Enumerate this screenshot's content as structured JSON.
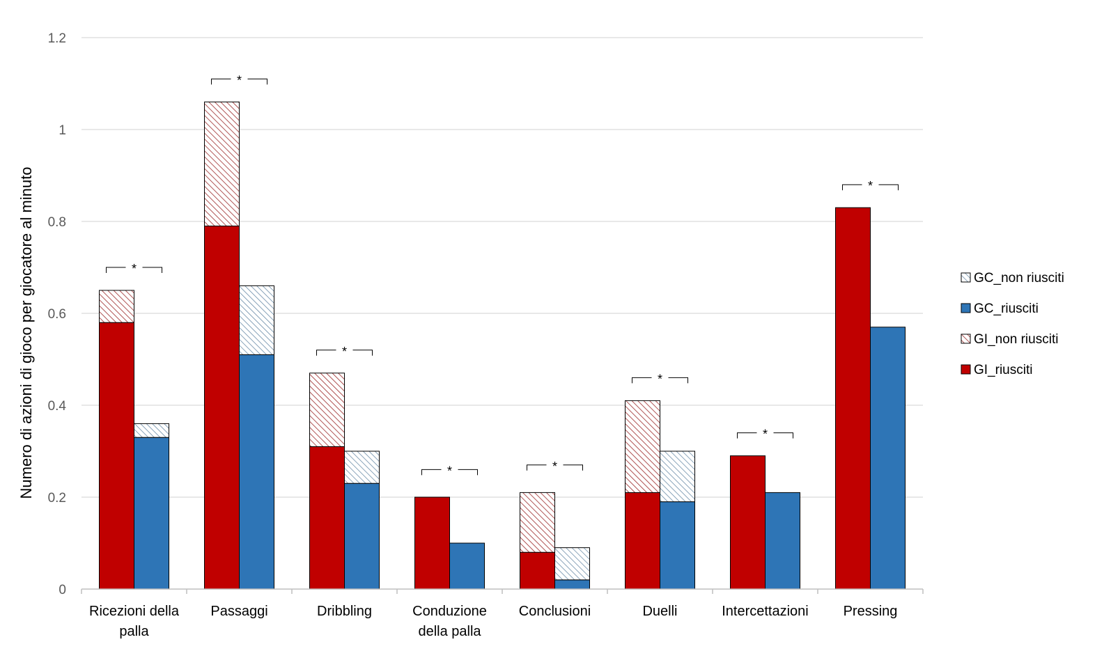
{
  "chart_data": {
    "type": "bar",
    "stacked": true,
    "title": "",
    "xlabel": "",
    "ylabel": "Numero di azioni di gioco per giocatore al minuto",
    "ylim": [
      0,
      1.2
    ],
    "yticks": [
      "0",
      "0.2",
      "0.4",
      "0.6",
      "0.8",
      "1",
      "1.2"
    ],
    "grid": true,
    "legend_position": "right",
    "categories": [
      [
        "Ricezioni della",
        "palla"
      ],
      [
        "Passaggi"
      ],
      [
        "Dribbling"
      ],
      [
        "Conduzione",
        "della palla"
      ],
      [
        "Conclusioni"
      ],
      [
        "Duelli"
      ],
      [
        "Intercettazioni"
      ],
      [
        "Pressing"
      ]
    ],
    "series": [
      {
        "name": "GI_riusciti",
        "group": "GI",
        "pattern": "solid",
        "color": "#c00000",
        "values": [
          0.58,
          0.79,
          0.31,
          0.2,
          0.08,
          0.21,
          0.29,
          0.83
        ]
      },
      {
        "name": "GI_non riusciti",
        "group": "GI",
        "pattern": "hatch",
        "color": "#c00000",
        "values": [
          0.07,
          0.27,
          0.16,
          0.0,
          0.13,
          0.2,
          0.0,
          0.0
        ]
      },
      {
        "name": "GC_riusciti",
        "group": "GC",
        "pattern": "solid",
        "color": "#2e75b6",
        "values": [
          0.33,
          0.51,
          0.23,
          0.1,
          0.02,
          0.19,
          0.21,
          0.57
        ]
      },
      {
        "name": "GC_non riusciti",
        "group": "GC",
        "pattern": "hatch",
        "color": "#2e75b6",
        "values": [
          0.03,
          0.15,
          0.07,
          0.0,
          0.07,
          0.11,
          0.0,
          0.0
        ]
      }
    ],
    "legend": [
      "GC_non riusciti",
      "GC_riusciti",
      "GI_non riusciti",
      "GI_riusciti"
    ],
    "significance": {
      "label": "*",
      "levels": [
        0.7,
        1.11,
        0.52,
        0.26,
        0.27,
        0.46,
        0.34,
        0.88
      ]
    }
  }
}
